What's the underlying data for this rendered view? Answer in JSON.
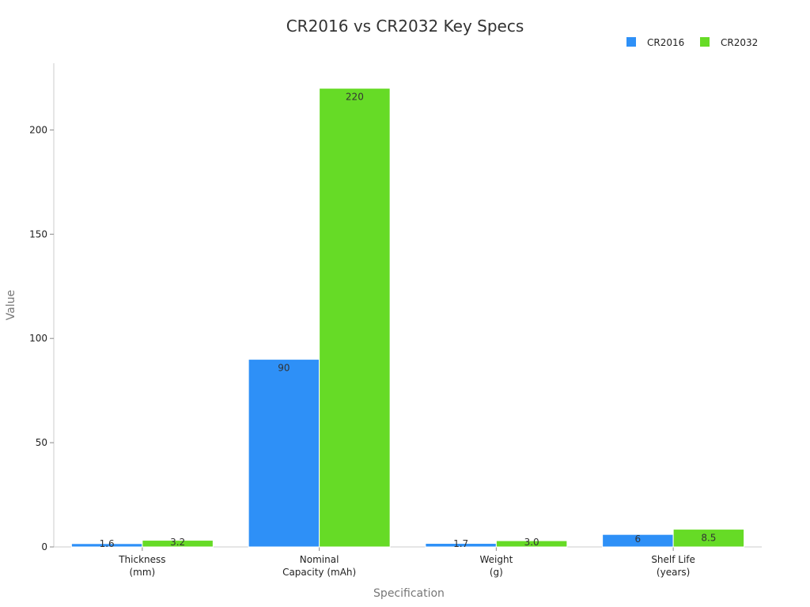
{
  "chart_data": {
    "type": "bar",
    "title": "CR2016 vs CR2032 Key Specs",
    "xlabel": "Specification",
    "ylabel": "Value",
    "ylim": [
      0,
      232
    ],
    "yticks": [
      0,
      50,
      100,
      150,
      200
    ],
    "categories": [
      [
        "Thickness",
        "(mm)"
      ],
      [
        "Nominal",
        "Capacity (mAh)"
      ],
      [
        "Weight",
        "(g)"
      ],
      [
        "Shelf Life",
        "(years)"
      ]
    ],
    "series": [
      {
        "name": "CR2016",
        "color": "#2e90f7",
        "values": [
          1.6,
          90,
          1.7,
          6
        ],
        "labels": [
          "1.6",
          "90",
          "1.7",
          "6"
        ]
      },
      {
        "name": "CR2032",
        "color": "#66db26",
        "values": [
          3.2,
          220,
          3.0,
          8.5
        ],
        "labels": [
          "3.2",
          "220",
          "3.0",
          "8.5"
        ]
      }
    ],
    "legend": "top-right",
    "grid": false
  }
}
